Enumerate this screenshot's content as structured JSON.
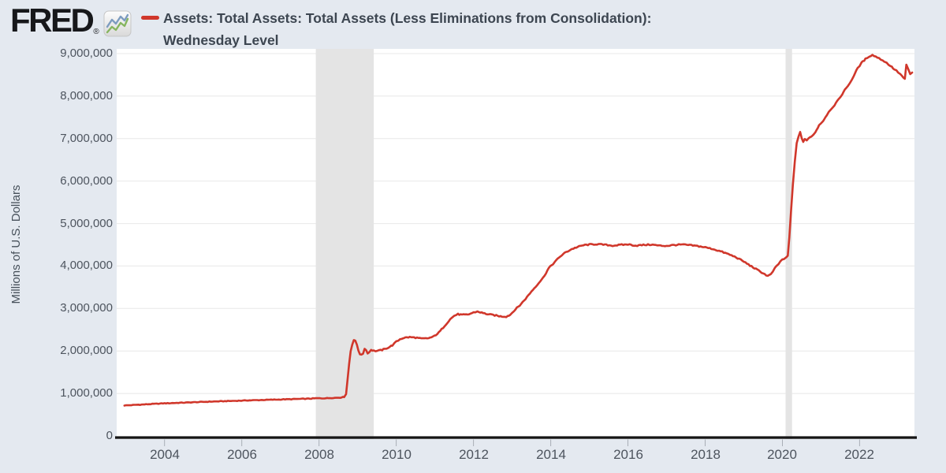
{
  "header": {
    "logo_text": "FRED",
    "logo_reg": "®"
  },
  "chart": {
    "title_line1": "Assets: Total Assets: Total Assets (Less Eliminations from Consolidation):",
    "title_line2": "Wednesday Level",
    "ylabel": "Millions of U.S. Dollars"
  },
  "chart_data": {
    "type": "line",
    "title": "Assets: Total Assets: Total Assets (Less Eliminations from Consolidation): Wednesday Level",
    "ylabel": "Millions of U.S. Dollars",
    "xlabel": "",
    "xlim": [
      2002.76,
      2023.42
    ],
    "ylim": [
      0,
      9000000
    ],
    "grid": true,
    "legend_position": "top",
    "x_ticks": [
      2004,
      2006,
      2008,
      2010,
      2012,
      2014,
      2016,
      2018,
      2020,
      2022
    ],
    "y_ticks": [
      {
        "value": 0,
        "label": "0"
      },
      {
        "value": 1000000,
        "label": "1,000,000"
      },
      {
        "value": 2000000,
        "label": "2,000,000"
      },
      {
        "value": 3000000,
        "label": "3,000,000"
      },
      {
        "value": 4000000,
        "label": "4,000,000"
      },
      {
        "value": 5000000,
        "label": "5,000,000"
      },
      {
        "value": 6000000,
        "label": "6,000,000"
      },
      {
        "value": 7000000,
        "label": "7,000,000"
      },
      {
        "value": 8000000,
        "label": "8,000,000"
      },
      {
        "value": 9000000,
        "label": "9,000,000"
      }
    ],
    "recession_bands": [
      [
        2007.917,
        2009.417
      ],
      [
        2020.083,
        2020.25
      ]
    ],
    "colors": {
      "line": "#d0372b",
      "recession_band": "#e4e4e4",
      "grid": "#e8e8e8",
      "plot_bg": "#ffffff",
      "page_bg": "#e4e9f0",
      "axis": "#151515",
      "tick": "#a9aeb6",
      "tick_label": "#4d545e",
      "title_text": "#3d4651",
      "logo_icon_blue": "#7d9cc0",
      "logo_icon_green": "#86b55f"
    },
    "series": [
      {
        "name": "Assets: Total Assets: Total Assets (Less Eliminations from Consolidation): Wednesday Level",
        "color": "#d0372b",
        "points": [
          [
            2002.96,
            719000
          ],
          [
            2003.1,
            722000
          ],
          [
            2003.25,
            733000
          ],
          [
            2003.4,
            738000
          ],
          [
            2003.6,
            748000
          ],
          [
            2003.8,
            757000
          ],
          [
            2004.0,
            768000
          ],
          [
            2004.2,
            774000
          ],
          [
            2004.4,
            781000
          ],
          [
            2004.6,
            788000
          ],
          [
            2004.8,
            795000
          ],
          [
            2005.0,
            802000
          ],
          [
            2005.2,
            808000
          ],
          [
            2005.4,
            814000
          ],
          [
            2005.6,
            820000
          ],
          [
            2005.8,
            826000
          ],
          [
            2006.0,
            832000
          ],
          [
            2006.2,
            838000
          ],
          [
            2006.4,
            843000
          ],
          [
            2006.6,
            848000
          ],
          [
            2006.8,
            853000
          ],
          [
            2007.0,
            858000
          ],
          [
            2007.2,
            864000
          ],
          [
            2007.4,
            869000
          ],
          [
            2007.6,
            874000
          ],
          [
            2007.8,
            879000
          ],
          [
            2007.95,
            888000
          ],
          [
            2008.1,
            886000
          ],
          [
            2008.25,
            891000
          ],
          [
            2008.4,
            896000
          ],
          [
            2008.55,
            903000
          ],
          [
            2008.65,
            920000
          ],
          [
            2008.7,
            990000
          ],
          [
            2008.74,
            1330000
          ],
          [
            2008.78,
            1700000
          ],
          [
            2008.82,
            2000000
          ],
          [
            2008.86,
            2160000
          ],
          [
            2008.9,
            2260000
          ],
          [
            2008.94,
            2230000
          ],
          [
            2008.98,
            2150000
          ],
          [
            2009.02,
            2020000
          ],
          [
            2009.06,
            1930000
          ],
          [
            2009.1,
            1900000
          ],
          [
            2009.14,
            1940000
          ],
          [
            2009.18,
            2060000
          ],
          [
            2009.22,
            2020000
          ],
          [
            2009.26,
            1955000
          ],
          [
            2009.3,
            1970000
          ],
          [
            2009.35,
            2030000
          ],
          [
            2009.42,
            2005000
          ],
          [
            2009.5,
            2000000
          ],
          [
            2009.6,
            2015000
          ],
          [
            2009.7,
            2045000
          ],
          [
            2009.8,
            2085000
          ],
          [
            2009.9,
            2135000
          ],
          [
            2010.0,
            2215000
          ],
          [
            2010.1,
            2280000
          ],
          [
            2010.2,
            2310000
          ],
          [
            2010.35,
            2325000
          ],
          [
            2010.5,
            2315000
          ],
          [
            2010.65,
            2290000
          ],
          [
            2010.8,
            2295000
          ],
          [
            2010.95,
            2330000
          ],
          [
            2011.1,
            2430000
          ],
          [
            2011.25,
            2590000
          ],
          [
            2011.4,
            2750000
          ],
          [
            2011.5,
            2830000
          ],
          [
            2011.6,
            2865000
          ],
          [
            2011.7,
            2850000
          ],
          [
            2011.85,
            2855000
          ],
          [
            2012.0,
            2905000
          ],
          [
            2012.1,
            2930000
          ],
          [
            2012.25,
            2890000
          ],
          [
            2012.4,
            2860000
          ],
          [
            2012.55,
            2840000
          ],
          [
            2012.7,
            2815000
          ],
          [
            2012.85,
            2810000
          ],
          [
            2012.95,
            2850000
          ],
          [
            2013.05,
            2950000
          ],
          [
            2013.2,
            3075000
          ],
          [
            2013.35,
            3230000
          ],
          [
            2013.5,
            3400000
          ],
          [
            2013.65,
            3560000
          ],
          [
            2013.8,
            3720000
          ],
          [
            2013.95,
            3950000
          ],
          [
            2014.1,
            4090000
          ],
          [
            2014.25,
            4230000
          ],
          [
            2014.4,
            4330000
          ],
          [
            2014.55,
            4400000
          ],
          [
            2014.7,
            4450000
          ],
          [
            2014.85,
            4490000
          ],
          [
            2015.0,
            4505000
          ],
          [
            2015.2,
            4515000
          ],
          [
            2015.4,
            4500000
          ],
          [
            2015.6,
            4480000
          ],
          [
            2015.8,
            4495000
          ],
          [
            2016.0,
            4510000
          ],
          [
            2016.2,
            4480000
          ],
          [
            2016.4,
            4495000
          ],
          [
            2016.6,
            4505000
          ],
          [
            2016.8,
            4480000
          ],
          [
            2017.0,
            4475000
          ],
          [
            2017.2,
            4495000
          ],
          [
            2017.4,
            4505000
          ],
          [
            2017.6,
            4490000
          ],
          [
            2017.8,
            4470000
          ],
          [
            2018.0,
            4440000
          ],
          [
            2018.2,
            4400000
          ],
          [
            2018.4,
            4345000
          ],
          [
            2018.6,
            4280000
          ],
          [
            2018.8,
            4205000
          ],
          [
            2019.0,
            4105000
          ],
          [
            2019.2,
            3990000
          ],
          [
            2019.35,
            3910000
          ],
          [
            2019.5,
            3830000
          ],
          [
            2019.62,
            3765000
          ],
          [
            2019.7,
            3800000
          ],
          [
            2019.8,
            3940000
          ],
          [
            2019.9,
            4050000
          ],
          [
            2020.0,
            4160000
          ],
          [
            2020.07,
            4170000
          ],
          [
            2020.14,
            4240000
          ],
          [
            2020.18,
            4670000
          ],
          [
            2020.22,
            5250000
          ],
          [
            2020.27,
            5900000
          ],
          [
            2020.32,
            6470000
          ],
          [
            2020.37,
            6880000
          ],
          [
            2020.42,
            7040000
          ],
          [
            2020.46,
            7165000
          ],
          [
            2020.5,
            7010000
          ],
          [
            2020.54,
            6925000
          ],
          [
            2020.58,
            6990000
          ],
          [
            2020.63,
            6945000
          ],
          [
            2020.68,
            7005000
          ],
          [
            2020.75,
            7055000
          ],
          [
            2020.85,
            7140000
          ],
          [
            2020.95,
            7320000
          ],
          [
            2021.05,
            7410000
          ],
          [
            2021.15,
            7560000
          ],
          [
            2021.25,
            7690000
          ],
          [
            2021.35,
            7790000
          ],
          [
            2021.45,
            7910000
          ],
          [
            2021.55,
            8050000
          ],
          [
            2021.65,
            8190000
          ],
          [
            2021.75,
            8310000
          ],
          [
            2021.85,
            8480000
          ],
          [
            2021.95,
            8660000
          ],
          [
            2022.05,
            8780000
          ],
          [
            2022.15,
            8870000
          ],
          [
            2022.25,
            8940000
          ],
          [
            2022.33,
            8965000
          ],
          [
            2022.42,
            8930000
          ],
          [
            2022.5,
            8890000
          ],
          [
            2022.6,
            8840000
          ],
          [
            2022.7,
            8780000
          ],
          [
            2022.8,
            8710000
          ],
          [
            2022.9,
            8630000
          ],
          [
            2023.0,
            8560000
          ],
          [
            2023.1,
            8470000
          ],
          [
            2023.17,
            8395000
          ],
          [
            2023.21,
            8730000
          ],
          [
            2023.26,
            8630000
          ],
          [
            2023.31,
            8510000
          ],
          [
            2023.36,
            8560000
          ]
        ]
      }
    ]
  }
}
